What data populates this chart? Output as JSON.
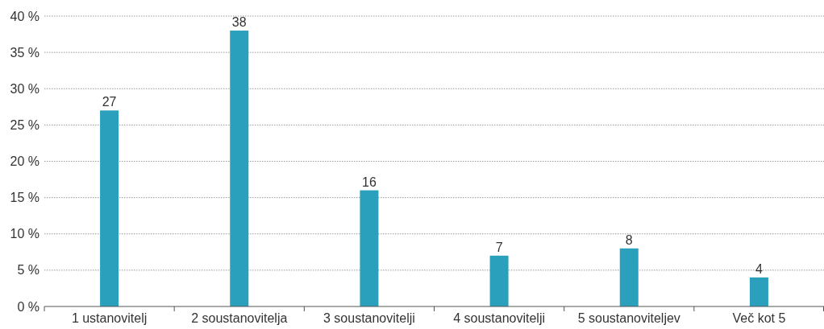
{
  "chart_data": {
    "type": "bar",
    "categories": [
      "1 ustanovitelj",
      "2 soustanovitelja",
      "3 soustanovitelji",
      "4 soustanovitelji",
      "5 soustanoviteljev",
      "Več kot 5"
    ],
    "values": [
      27,
      38,
      16,
      7,
      8,
      4
    ],
    "color": "#2aa0bd",
    "ylim": [
      0,
      40
    ],
    "yticks": [
      {
        "value": 0,
        "label": "0 %"
      },
      {
        "value": 5,
        "label": "5 %"
      },
      {
        "value": 10,
        "label": "10 %"
      },
      {
        "value": 15,
        "label": "15 %"
      },
      {
        "value": 20,
        "label": "20 %"
      },
      {
        "value": 25,
        "label": "25 %"
      },
      {
        "value": 30,
        "label": "30 %"
      },
      {
        "value": 35,
        "label": "35 %"
      },
      {
        "value": 40,
        "label": "40 %"
      }
    ],
    "grid": "y",
    "data_labels": true
  }
}
